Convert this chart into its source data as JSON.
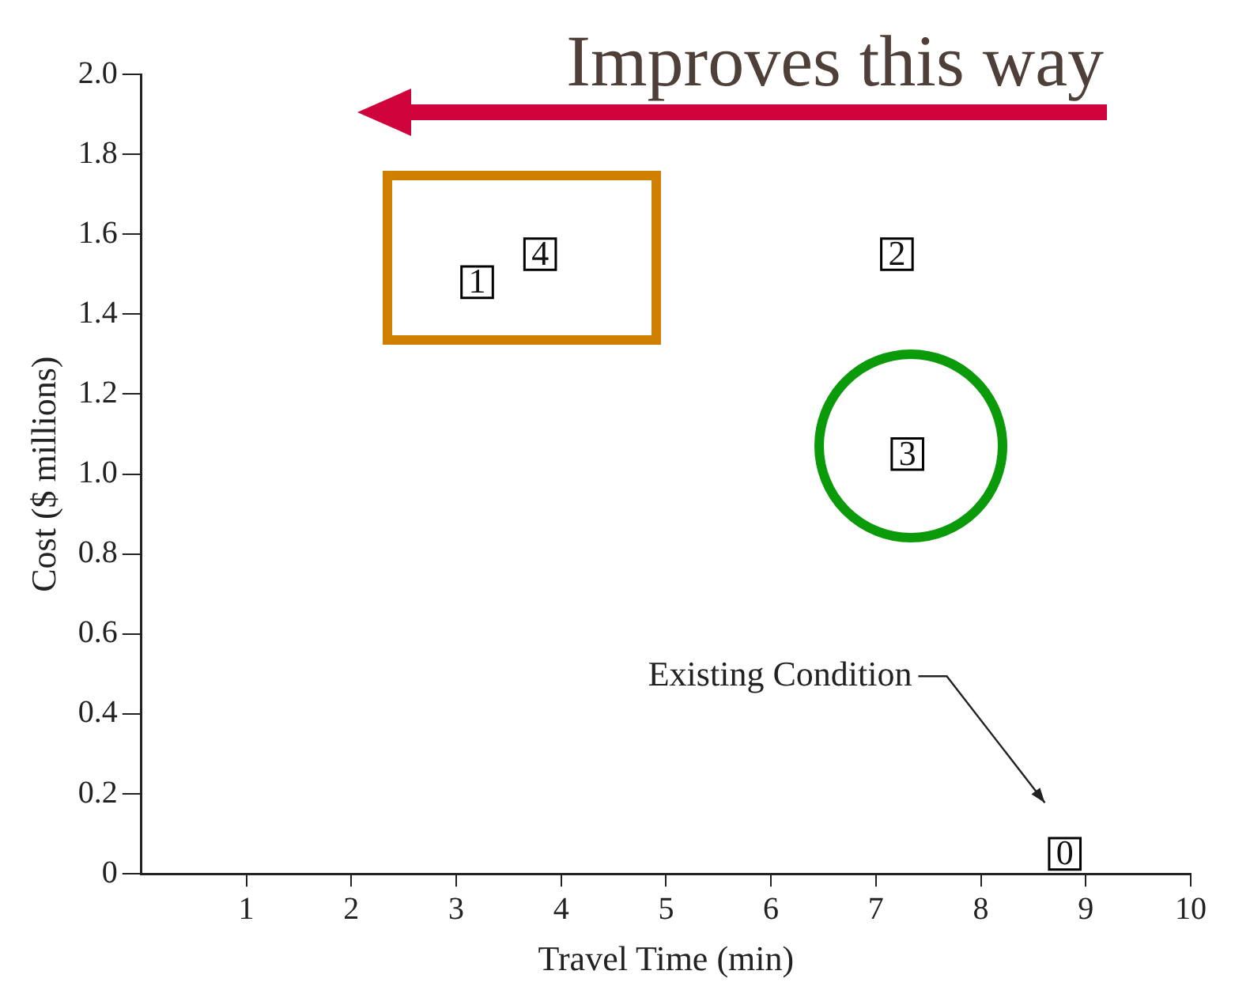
{
  "chart_data": {
    "type": "scatter",
    "xlabel": "Travel Time (min)",
    "ylabel": "Cost ($ millions)",
    "annotations": [
      "Improves this way",
      "Existing Condition"
    ],
    "series": [
      {
        "name": "0",
        "color": "#000000",
        "x": [
          8.8
        ],
        "values": [
          0.05
        ]
      },
      {
        "name": "1",
        "color": "#000000",
        "x": [
          3.2
        ],
        "values": [
          1.48
        ]
      },
      {
        "name": "2",
        "color": "#000000",
        "x": [
          7.2
        ],
        "values": [
          1.55
        ]
      },
      {
        "name": "3",
        "color": "#000000",
        "x": [
          7.3
        ],
        "values": [
          1.05
        ]
      },
      {
        "name": "4",
        "color": "#000000",
        "x": [
          3.8
        ],
        "values": [
          1.55
        ]
      }
    ],
    "xlim": [
      0,
      10
    ],
    "xticks": [
      1,
      2,
      3,
      4,
      5,
      6,
      7,
      8,
      9,
      10
    ],
    "ylim": [
      0,
      2
    ],
    "yticks": [
      0,
      0.2,
      0.4,
      0.6,
      0.8,
      {
        "value": 1,
        "label": "1.0"
      },
      1.2,
      1.4,
      1.6,
      1.8,
      {
        "value": 2,
        "label": "2.0"
      }
    ],
    "grid": false,
    "legend": false,
    "marker": "square"
  }
}
